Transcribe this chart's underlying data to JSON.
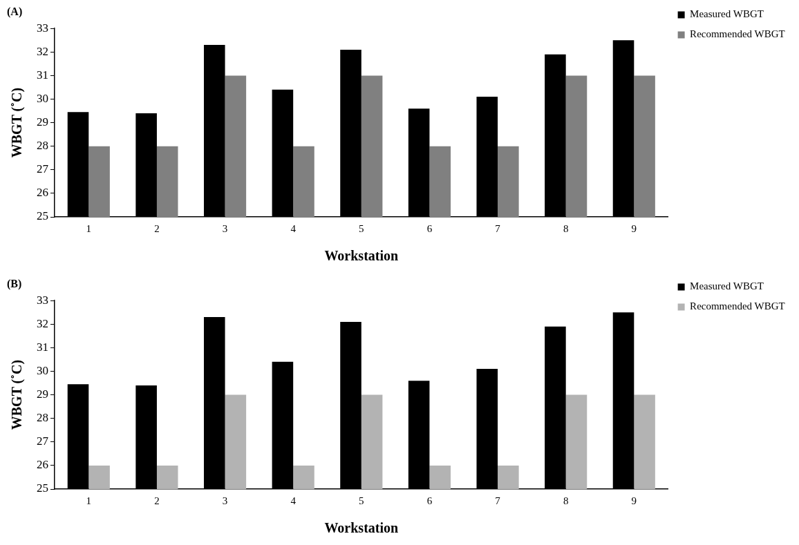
{
  "chart_data": [
    {
      "type": "bar",
      "title": "(A)",
      "xlabel": "Workstation",
      "ylabel": "WBGT (˚C)",
      "categories": [
        "1",
        "2",
        "3",
        "4",
        "5",
        "6",
        "7",
        "8",
        "9"
      ],
      "series": [
        {
          "name": "Measured WBGT",
          "color": "#000000",
          "values": [
            29.45,
            29.4,
            32.3,
            30.4,
            32.1,
            29.6,
            30.1,
            31.9,
            32.5
          ]
        },
        {
          "name": "Recommended WBGT",
          "color": "#808080",
          "values": [
            28,
            28,
            31,
            28,
            31,
            28,
            28,
            31,
            31
          ]
        }
      ],
      "ylim": [
        25,
        33
      ],
      "yticks": [
        25,
        26,
        27,
        28,
        29,
        30,
        31,
        32,
        33
      ],
      "grid": false,
      "legend": "top right"
    },
    {
      "type": "bar",
      "title": "(B)",
      "xlabel": "Workstation",
      "ylabel": "WBGT (˚C)",
      "categories": [
        "1",
        "2",
        "3",
        "4",
        "5",
        "6",
        "7",
        "8",
        "9"
      ],
      "series": [
        {
          "name": "Measured WBGT",
          "color": "#000000",
          "values": [
            29.45,
            29.4,
            32.3,
            30.4,
            32.1,
            29.6,
            30.1,
            31.9,
            32.5
          ]
        },
        {
          "name": "Recommended WBGT",
          "color": "#b3b3b3",
          "values": [
            26,
            26,
            29,
            26,
            29,
            26,
            26,
            29,
            29
          ]
        }
      ],
      "ylim": [
        25,
        33
      ],
      "yticks": [
        25,
        26,
        27,
        28,
        29,
        30,
        31,
        32,
        33
      ],
      "grid": false,
      "legend": "top right"
    }
  ]
}
